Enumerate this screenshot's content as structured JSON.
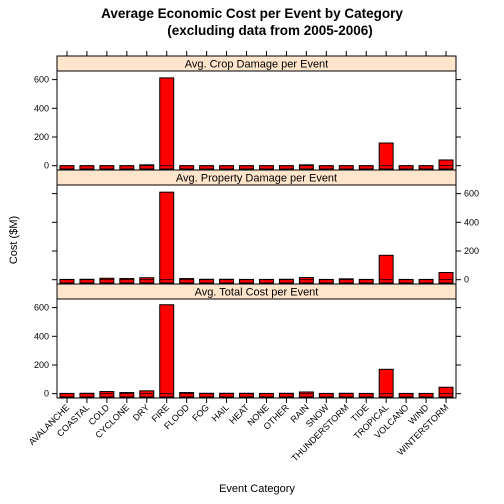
{
  "chart_data": {
    "type": "bar",
    "title_line1": "Average Economic Cost per Event by Category",
    "title_line2": "(excluding data from 2005-2006)",
    "xlabel": "Event Category",
    "ylabel": "Cost ($M)",
    "ylim": [
      -30,
      660
    ],
    "yticks": [
      0,
      200,
      400,
      600
    ],
    "grid": false,
    "colors": {
      "bar_fill": "#ff0000",
      "bar_stroke": "#000000",
      "strip_bg": "#ffe5cc"
    },
    "categories": [
      "AVALANCHE",
      "COASTAL",
      "COLD",
      "CYCLONE",
      "DRY",
      "FIRE",
      "FLOOD",
      "FOG",
      "HAIL",
      "HEAT",
      "NONE",
      "OTHER",
      "RAIN",
      "SNOW",
      "THUNDERSTORM",
      "TIDE",
      "TROPICAL",
      "VOLCANO",
      "WIND",
      "WINTERSTORM"
    ],
    "panels": [
      {
        "name": "Avg. Total Cost per Event",
        "y_axis_side": "left",
        "values": [
          2,
          3,
          15,
          8,
          20,
          620,
          8,
          3,
          3,
          3,
          2,
          3,
          12,
          2,
          3,
          2,
          170,
          2,
          2,
          45
        ]
      },
      {
        "name": "Avg. Property Damage per Event",
        "y_axis_side": "right",
        "values": [
          2,
          3,
          10,
          8,
          14,
          610,
          8,
          3,
          3,
          2,
          2,
          3,
          15,
          2,
          6,
          2,
          170,
          2,
          2,
          50
        ]
      },
      {
        "name": "Avg. Crop Damage per Event",
        "y_axis_side": "left",
        "values": [
          0,
          0,
          0,
          0,
          6,
          612,
          0,
          0,
          0,
          0,
          0,
          0,
          6,
          0,
          0,
          0,
          158,
          0,
          0,
          40
        ]
      }
    ]
  }
}
